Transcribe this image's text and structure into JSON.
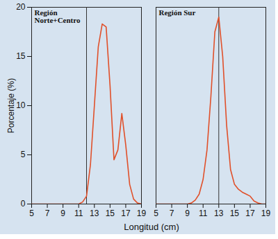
{
  "chart_data": {
    "type": "line",
    "ylabel": "Porcentaje (%)",
    "xlabel": "Longitud (cm)",
    "xlim": [
      5,
      19
    ],
    "xticks": [
      5,
      7,
      9,
      11,
      13,
      15,
      17,
      19
    ],
    "ylim": [
      0,
      20
    ],
    "yticks": [
      0,
      5,
      10,
      15,
      20
    ],
    "panels": [
      {
        "title": "Región Norte+Centro",
        "color": "#e0502a",
        "reference_x": 12,
        "x": [
          5,
          6,
          7,
          8,
          9,
          10,
          11,
          11.5,
          12,
          12.5,
          13,
          13.5,
          14,
          14.5,
          15,
          15.5,
          16,
          16.5,
          17,
          17.5,
          18,
          18.5,
          19
        ],
        "values": [
          0,
          0,
          0,
          0,
          0,
          0,
          0,
          0.2,
          0.8,
          4,
          10,
          16,
          18.3,
          18,
          12,
          4.5,
          5.5,
          9.2,
          6,
          2,
          0.5,
          0.1,
          0
        ]
      },
      {
        "title": "Región Sur",
        "color": "#e0502a",
        "reference_x": 13,
        "x": [
          5,
          6,
          7,
          8,
          9,
          9.5,
          10,
          10.5,
          11,
          11.5,
          12,
          12.5,
          13,
          13.5,
          14,
          14.5,
          15,
          15.5,
          16,
          16.5,
          17,
          17.5,
          18,
          18.5,
          19
        ],
        "values": [
          0,
          0,
          0,
          0,
          0,
          0.1,
          0.4,
          1,
          2.5,
          5.5,
          11,
          17.5,
          19,
          15,
          8,
          3.5,
          2,
          1.5,
          1.2,
          1,
          0.8,
          0.3,
          0.1,
          0,
          0
        ]
      }
    ]
  }
}
